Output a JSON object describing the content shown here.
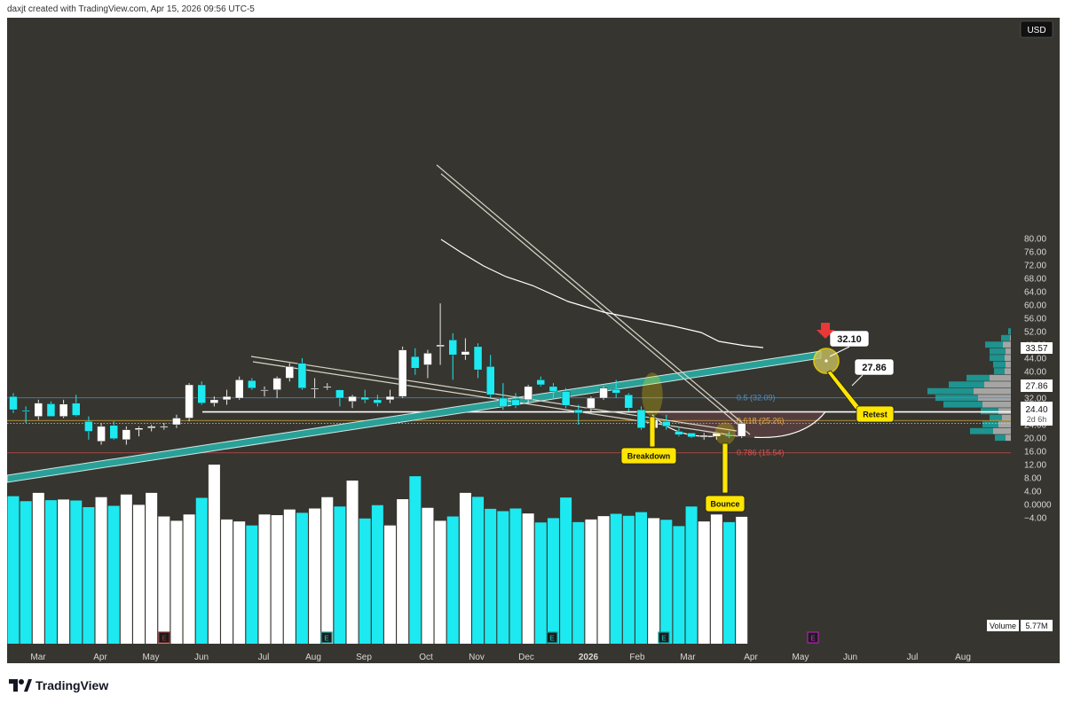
{
  "header": {
    "credit": "daxjt created with TradingView.com, Apr 15, 2026 09:56 UTC-5"
  },
  "footer": {
    "brand": "TradingView"
  },
  "colors": {
    "background": "#37352f",
    "up_candle": "#ffffff",
    "down_candle": "#1de9f0",
    "volume_up": "#ffffff",
    "volume_down": "#1de9f0",
    "trendline": "#2aa198",
    "annotation": "#ffe600",
    "red_level": "#e05050",
    "yellow_level": "#f0c040",
    "blue_level": "#4a90c8"
  },
  "chart_data": {
    "type": "candlestick",
    "currency": "USD",
    "x_labels": [
      "Mar",
      "Apr",
      "May",
      "Jun",
      "Jul",
      "Aug",
      "Sep",
      "Oct",
      "Nov",
      "Dec",
      "2026",
      "Feb",
      "Mar",
      "Apr",
      "May",
      "Jun",
      "Jul",
      "Aug"
    ],
    "y_ticks": [
      "80.00",
      "76.00",
      "72.00",
      "68.00",
      "64.00",
      "60.00",
      "56.00",
      "52.00",
      "48.00",
      "44.00",
      "40.00",
      "36.00",
      "32.00",
      "28.00",
      "24.00",
      "20.00",
      "16.00",
      "12.00",
      "8.00",
      "4.00",
      "0.0000",
      "−4.00"
    ],
    "ylim": [
      -8,
      82
    ],
    "candles": [
      [
        32.5,
        33.5,
        27.5,
        28.5
      ],
      [
        28.3,
        29.5,
        24.5,
        28.0
      ],
      [
        26.5,
        31.5,
        25.5,
        30.5
      ],
      [
        30.3,
        31.0,
        26.5,
        26.5
      ],
      [
        26.5,
        31.5,
        26.0,
        30.2
      ],
      [
        30.5,
        33.0,
        26.5,
        26.8
      ],
      [
        25.0,
        26.5,
        19.5,
        22.0
      ],
      [
        19.0,
        24.5,
        18.0,
        23.5
      ],
      [
        23.8,
        25.0,
        19.5,
        19.8
      ],
      [
        19.5,
        23.5,
        18.0,
        22.5
      ],
      [
        22.5,
        23.5,
        20.5,
        23.0
      ],
      [
        23.0,
        24.0,
        22.0,
        23.5
      ],
      [
        23.5,
        24.5,
        22.5,
        23.5
      ],
      [
        24.0,
        27.0,
        23.0,
        26.0
      ],
      [
        26.0,
        36.5,
        25.0,
        36.0
      ],
      [
        36.0,
        37.0,
        30.0,
        30.5
      ],
      [
        30.5,
        32.5,
        29.5,
        31.5
      ],
      [
        31.5,
        34.5,
        30.0,
        32.5
      ],
      [
        32.0,
        38.5,
        31.5,
        37.5
      ],
      [
        37.3,
        38.0,
        34.5,
        35.0
      ],
      [
        34.5,
        35.5,
        32.5,
        34.5
      ],
      [
        34.5,
        38.5,
        32.0,
        38.0
      ],
      [
        38.0,
        42.5,
        37.0,
        41.5
      ],
      [
        42.5,
        44.0,
        34.5,
        35.0
      ],
      [
        35.0,
        38.0,
        32.0,
        35.0
      ],
      [
        35.5,
        36.5,
        34.5,
        35.5
      ],
      [
        34.5,
        34.5,
        29.5,
        32.0
      ],
      [
        31.0,
        33.0,
        29.0,
        32.5
      ],
      [
        32.3,
        34.5,
        30.5,
        31.5
      ],
      [
        31.5,
        33.0,
        29.5,
        30.5
      ],
      [
        31.5,
        34.5,
        30.5,
        32.5
      ],
      [
        32.5,
        47.5,
        32.0,
        46.5
      ],
      [
        44.5,
        47.0,
        39.0,
        41.0
      ],
      [
        42.0,
        46.5,
        38.0,
        45.5
      ],
      [
        47.5,
        60.5,
        42.0,
        48.0
      ],
      [
        49.5,
        51.5,
        37.5,
        45.0
      ],
      [
        45.0,
        50.0,
        43.5,
        46.0
      ],
      [
        47.5,
        48.5,
        38.0,
        40.5
      ],
      [
        41.5,
        45.0,
        32.0,
        33.0
      ],
      [
        32.0,
        36.5,
        28.5,
        29.5
      ],
      [
        31.5,
        33.5,
        29.0,
        29.8
      ],
      [
        31.5,
        36.0,
        30.5,
        35.5
      ],
      [
        37.5,
        38.5,
        35.5,
        36.0
      ],
      [
        35.5,
        36.5,
        32.0,
        34.0
      ],
      [
        34.0,
        35.0,
        29.0,
        29.8
      ],
      [
        28.5,
        30.0,
        24.0,
        27.5
      ],
      [
        29.0,
        32.5,
        27.5,
        32.0
      ],
      [
        32.0,
        35.5,
        31.5,
        35.0
      ],
      [
        34.5,
        37.5,
        32.0,
        33.5
      ],
      [
        33.0,
        33.5,
        28.0,
        29.0
      ],
      [
        28.5,
        29.5,
        22.5,
        23.0
      ],
      [
        23.0,
        26.5,
        22.5,
        25.5
      ],
      [
        25.0,
        27.0,
        22.5,
        23.5
      ],
      [
        22.0,
        23.0,
        20.5,
        21.0
      ],
      [
        21.5,
        21.5,
        20.0,
        20.3
      ],
      [
        20.3,
        21.5,
        19.5,
        20.8
      ],
      [
        20.5,
        21.5,
        19.5,
        21.5
      ],
      [
        21.0,
        22.0,
        20.0,
        20.5
      ],
      [
        20.5,
        24.5,
        20.0,
        24.4
      ]
    ],
    "volume": [
      2.5,
      1.0,
      3.5,
      1.3,
      1.5,
      1.2,
      -0.8,
      2.2,
      -0.4,
      3.0,
      -0.1,
      3.5,
      -3.6,
      -4.9,
      -3.0,
      2.0,
      12.0,
      -4.5,
      -5.1,
      -6.3,
      -3.0,
      -3.2,
      -1.5,
      -2.5,
      -1.2,
      2.2,
      -0.6,
      7.2,
      -4.2,
      -0.2,
      -6.3,
      1.6,
      8.5,
      -1.0,
      -4.9,
      -3.6,
      3.5,
      2.3,
      -1.3,
      -2.0,
      -1.2,
      -2.7,
      -5.4,
      -4.1,
      2.1,
      -5.3,
      -4.5,
      -3.5,
      -2.8,
      -3.4,
      -2.3,
      -4.1,
      -4.6,
      -6.5,
      -0.6,
      -5.1,
      -3.0,
      -5.3,
      -3.7
    ],
    "fib_levels": [
      {
        "label": "0.5 (32.09)",
        "value": 32.09
      },
      {
        "label": "0.618 (25.26)",
        "value": 25.26
      },
      {
        "label": "0.786 (15.54)",
        "value": 15.54
      }
    ],
    "price_tags": {
      "current": "24.40",
      "countdown": "2d 6h",
      "ma": "33.57",
      "level": "27.86",
      "volume_label": "Volume",
      "volume_value": "5.77M"
    },
    "annotations": {
      "target_1": "32.10",
      "target_2": "27.86",
      "breakdown": "Breakdown",
      "bounce": "Bounce",
      "retest": "Retest"
    },
    "earnings_marker": "E",
    "volume_profile": [
      {
        "price": 60,
        "left": 0.4,
        "right": 0.5
      },
      {
        "price": 58,
        "left": 0.8,
        "right": 0.8
      },
      {
        "price": 56,
        "left": 1.5,
        "right": 1.8
      },
      {
        "price": 54,
        "left": 2.5,
        "right": 3.0
      },
      {
        "price": 52,
        "left": 5,
        "right": 6
      },
      {
        "price": 50,
        "left": 10,
        "right": 9
      },
      {
        "price": 48,
        "left": 20,
        "right": 17
      },
      {
        "price": 46,
        "left": 18,
        "right": 14
      },
      {
        "price": 44,
        "left": 17,
        "right": 15
      },
      {
        "price": 42,
        "left": 14,
        "right": 14
      },
      {
        "price": 40,
        "left": 12,
        "right": 15
      },
      {
        "price": 38,
        "left": 26,
        "right": 32
      },
      {
        "price": 36,
        "left": 40,
        "right": 38
      },
      {
        "price": 34,
        "left": 52,
        "right": 50
      },
      {
        "price": 32,
        "left": 48,
        "right": 45
      },
      {
        "price": 30,
        "left": 44,
        "right": 40
      },
      {
        "price": 28,
        "left": 20,
        "right": 22
      },
      {
        "price": 26,
        "left": 14,
        "right": 18
      },
      {
        "price": 24,
        "left": 18,
        "right": 22
      },
      {
        "price": 22,
        "left": 26,
        "right": 28
      },
      {
        "price": 20,
        "left": 12,
        "right": 14
      },
      {
        "price": 18,
        "left": 2,
        "right": 1.5
      }
    ]
  }
}
